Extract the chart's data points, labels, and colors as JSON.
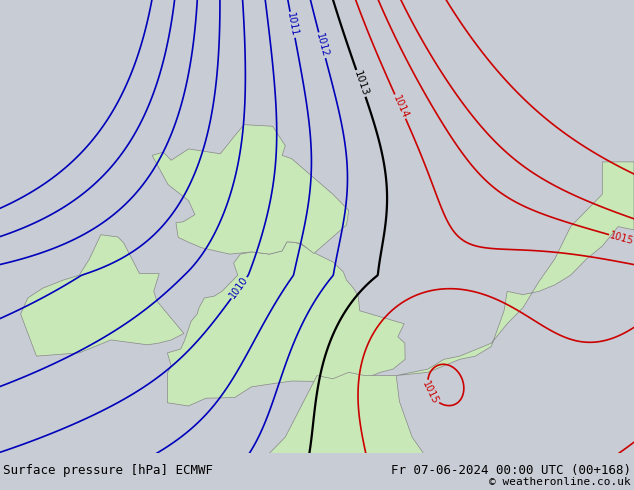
{
  "title_left": "Surface pressure [hPa] ECMWF",
  "title_right": "Fr 07-06-2024 00:00 UTC (00+168)",
  "copyright": "© weatheronline.co.uk",
  "bg_color": "#c8ccd4",
  "land_color": "#c8e8b8",
  "figsize": [
    6.34,
    4.9
  ],
  "dpi": 100,
  "blue_color": "#0000bb",
  "black_color": "#000000",
  "red_color": "#cc0000",
  "footer_bg": "#ffffff",
  "footer_text_color": "#000000",
  "footer_fontsize": 9,
  "lon_min": -11,
  "lon_max": 9,
  "lat_min": 48.5,
  "lat_max": 62.5
}
